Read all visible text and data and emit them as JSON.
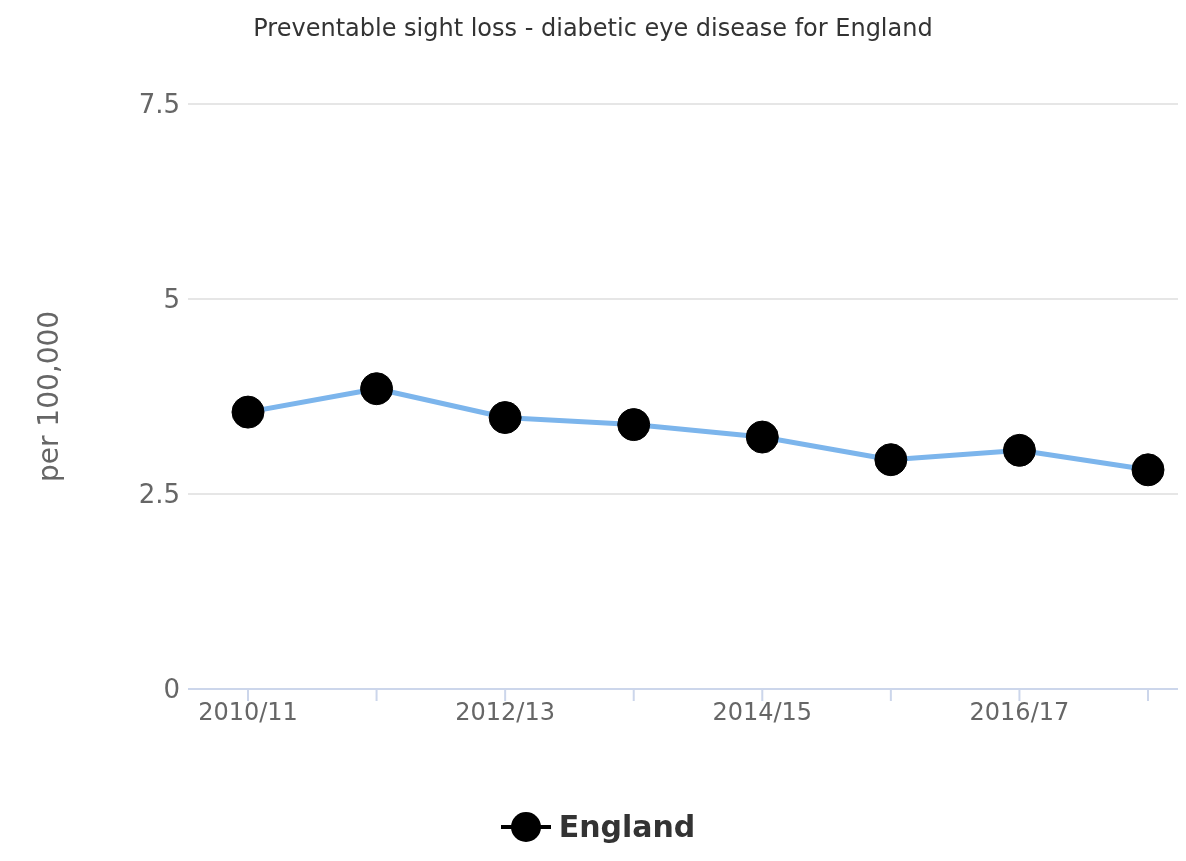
{
  "chart_data": {
    "type": "line",
    "title": "Preventable sight loss - diabetic eye disease for England",
    "ylabel": "per 100,000",
    "categories": [
      "2010/11",
      null,
      "2012/13",
      null,
      "2014/15",
      null,
      "2016/17",
      null
    ],
    "series": [
      {
        "name": "England",
        "color": "#7cb5ec",
        "values": [
          3.55,
          3.85,
          3.48,
          3.39,
          3.23,
          2.94,
          3.06,
          2.81
        ]
      }
    ],
    "ylim": [
      0,
      7.5
    ],
    "yticks": [
      0,
      2.5,
      5,
      7.5
    ],
    "grid": "y",
    "legend": "bottom",
    "marker": "circle",
    "line_style": "solid"
  }
}
